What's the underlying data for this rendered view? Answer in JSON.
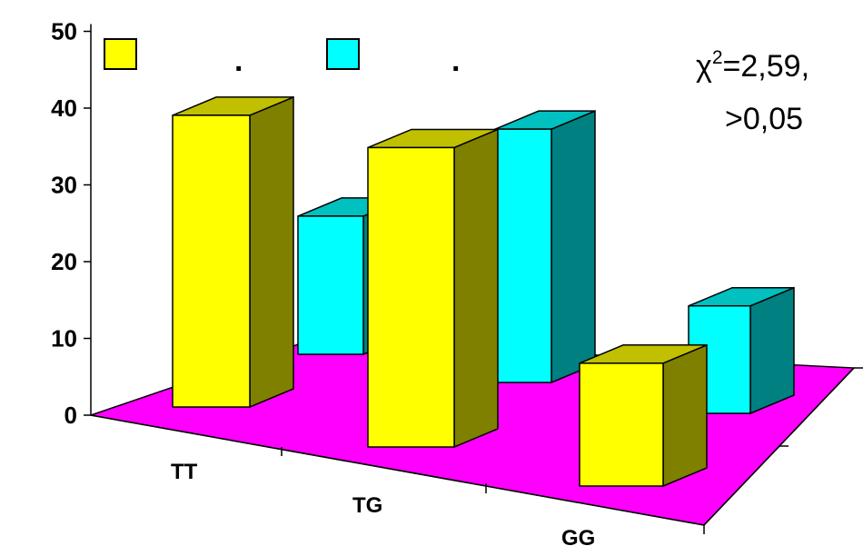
{
  "chart_data": {
    "type": "bar",
    "categories": [
      "TT",
      "TG",
      "GG"
    ],
    "series": [
      {
        "name": ".",
        "values": [
          38,
          39,
          16
        ]
      },
      {
        "name": ".",
        "values": [
          18,
          33,
          14
        ]
      }
    ],
    "yticks": [
      "0",
      "10",
      "20",
      "30",
      "40",
      "50"
    ],
    "ylim": [
      0,
      50
    ],
    "annotation": {
      "line1_prefix": "χ",
      "line1_sup": "2",
      "line1_suffix": "=2,59,",
      "line2": ">0,05"
    },
    "legend_placement": "top-left",
    "colors": {
      "series1_front": "#FFFF00",
      "series1_side": "#808000",
      "series1_top": "#C0C000",
      "series2_front": "#00FFFF",
      "series2_side": "#008080",
      "series2_top": "#00C0C0",
      "floor": "#FF00FF"
    }
  }
}
